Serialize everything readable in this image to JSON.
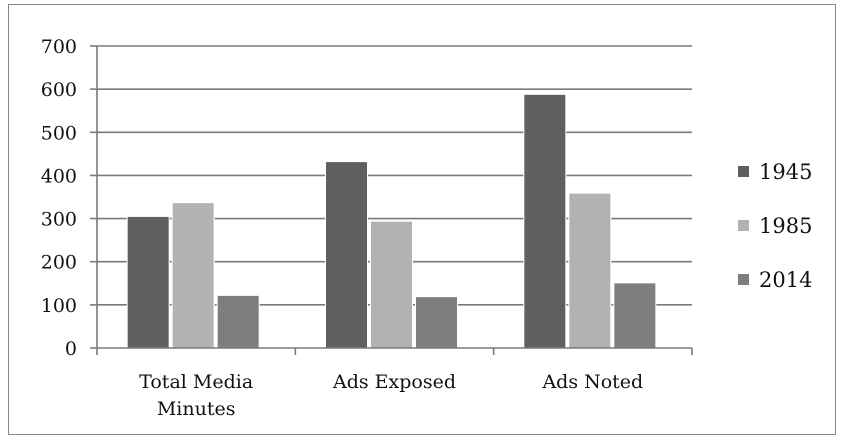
{
  "chart_data": {
    "type": "bar",
    "categories": [
      "Total Media Minutes",
      "Ads Exposed",
      "Ads Noted"
    ],
    "category_lines": [
      [
        "Total Media",
        "Minutes"
      ],
      [
        "Ads Exposed"
      ],
      [
        "Ads Noted"
      ]
    ],
    "series": [
      {
        "name": "1945",
        "values": [
          305,
          432,
          588
        ],
        "color": "#5f5f5f"
      },
      {
        "name": "1985",
        "values": [
          337,
          294,
          359
        ],
        "color": "#b2b2b2"
      },
      {
        "name": "2014",
        "values": [
          122,
          119,
          151
        ],
        "color": "#7e7e7e"
      }
    ],
    "ylim": [
      0,
      700
    ],
    "yticks": [
      0,
      100,
      200,
      300,
      400,
      500,
      600,
      700
    ],
    "grid": true,
    "legend": "right",
    "title": "",
    "xlabel": "",
    "ylabel": ""
  }
}
